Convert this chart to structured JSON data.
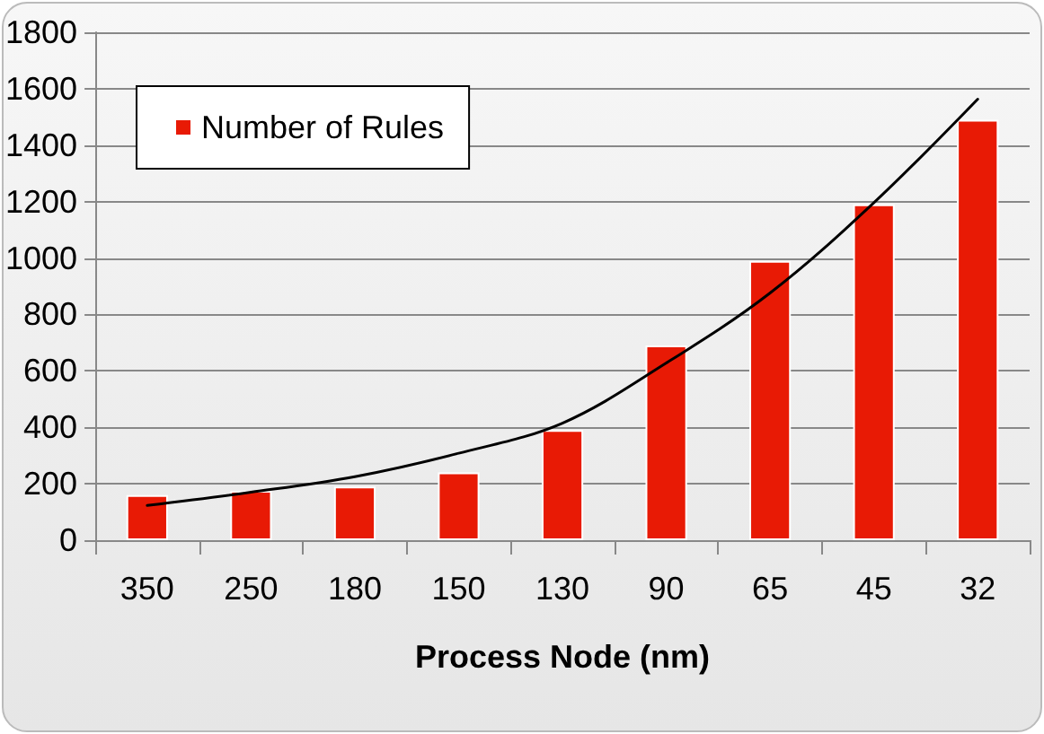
{
  "chart_data": {
    "type": "bar",
    "xlabel": "Process Node (nm)",
    "categories": [
      "350",
      "250",
      "180",
      "150",
      "130",
      "90",
      "65",
      "45",
      "32"
    ],
    "series": [
      {
        "name": "Number of Rules",
        "color": "#e81a05",
        "values": [
          160,
          175,
          190,
          240,
          390,
          690,
          990,
          1190,
          1490
        ]
      },
      {
        "type": "line",
        "color": "#000000",
        "x": [
          "350",
          "250",
          "180",
          "150",
          "130",
          "90",
          "65",
          "45",
          "32"
        ],
        "values": [
          123,
          170,
          225,
          308,
          415,
          628,
          876,
          1196,
          1563
        ]
      }
    ],
    "ylim": [
      0,
      1800
    ],
    "yticks": [
      0,
      200,
      400,
      600,
      800,
      1000,
      1200,
      1400,
      1600,
      1800
    ],
    "grid": "y",
    "legend": "top left",
    "marker": "none"
  }
}
